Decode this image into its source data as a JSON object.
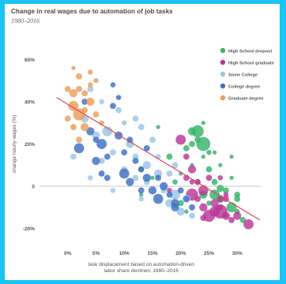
{
  "colors": {
    "frame": "#1bc4f2",
    "trendline": "#e0475a",
    "zero_line": "#bfbfbf"
  },
  "chart_data": {
    "type": "scatter",
    "title": "Change in real wages due to automation of job tasks",
    "subtitle": "1980–2016",
    "xlabel": "task displacement based on automation-driven labor share declines, 1980–2016",
    "ylabel": "change hourly wages (%)",
    "xlim": [
      -5,
      35
    ],
    "ylim": [
      -25,
      65
    ],
    "x_ticks": [
      0,
      5,
      10,
      15,
      20,
      25,
      30
    ],
    "x_tick_labels": [
      "0%",
      "5%",
      "10%",
      "15%",
      "20%",
      "25%",
      "30%"
    ],
    "y_ticks": [
      -20,
      0,
      20,
      40,
      60
    ],
    "y_tick_labels": [
      "-20%",
      "0",
      "20%",
      "40%",
      "60%"
    ],
    "grid": false,
    "legend_position": "top-right",
    "trendline": {
      "x": [
        -2,
        34
      ],
      "y": [
        42,
        -16
      ]
    },
    "series": [
      {
        "name": "High School dropout",
        "color": "#36b36a",
        "points": [
          [
            13,
            8,
            1.5
          ],
          [
            16,
            28,
            1
          ],
          [
            18,
            14,
            2
          ],
          [
            20,
            6,
            1
          ],
          [
            21,
            18,
            2
          ],
          [
            22,
            26,
            3
          ],
          [
            22,
            10,
            1
          ],
          [
            23,
            22,
            2
          ],
          [
            23,
            2,
            1.5
          ],
          [
            24,
            14,
            1
          ],
          [
            24,
            -4,
            3
          ],
          [
            25,
            8,
            2
          ],
          [
            25,
            -8,
            1.5
          ],
          [
            26,
            16,
            1
          ],
          [
            26,
            2,
            2
          ],
          [
            27,
            -6,
            3
          ],
          [
            27,
            10,
            1
          ],
          [
            28,
            -2,
            2
          ],
          [
            28,
            -14,
            1
          ],
          [
            29,
            -10,
            4
          ],
          [
            29,
            4,
            1
          ],
          [
            30,
            -4,
            2
          ],
          [
            30,
            -12,
            1.5
          ],
          [
            31,
            -16,
            2
          ],
          [
            23,
            26,
            5
          ],
          [
            26,
            -4,
            4
          ],
          [
            19,
            2,
            1.5
          ],
          [
            21,
            -12,
            1
          ],
          [
            15,
            4,
            1
          ],
          [
            24,
            20,
            6
          ],
          [
            27,
            -1,
            2.5
          ],
          [
            24,
            30,
            1
          ],
          [
            20,
            -8,
            2
          ],
          [
            30,
            -6,
            2
          ],
          [
            22,
            20,
            2
          ],
          [
            25,
            16,
            1.5
          ],
          [
            29,
            14,
            1
          ],
          [
            13,
            -4,
            1
          ]
        ]
      },
      {
        "name": "High School graduate",
        "color": "#b93799",
        "points": [
          [
            20,
            22,
            4
          ],
          [
            21,
            14,
            2
          ],
          [
            22,
            -4,
            5
          ],
          [
            22,
            8,
            3
          ],
          [
            23,
            2,
            2
          ],
          [
            24,
            -2,
            4
          ],
          [
            24,
            -10,
            3
          ],
          [
            25,
            4,
            2
          ],
          [
            25,
            -14,
            5
          ],
          [
            26,
            -8,
            3
          ],
          [
            26,
            -12,
            4
          ],
          [
            27,
            -10,
            2
          ],
          [
            27,
            4,
            1.5
          ],
          [
            28,
            -14,
            3
          ],
          [
            28,
            -6,
            2
          ],
          [
            29,
            -16,
            2
          ],
          [
            32,
            -18,
            4
          ],
          [
            30,
            -14,
            3
          ],
          [
            27,
            -12,
            6
          ],
          [
            21,
            4,
            2
          ],
          [
            23,
            -6,
            2
          ],
          [
            18,
            -2,
            1.5
          ],
          [
            24,
            -15,
            2
          ],
          [
            27,
            -6,
            2
          ],
          [
            22,
            2,
            1.5
          ],
          [
            28,
            -4,
            1.5
          ]
        ]
      },
      {
        "name": "Some College",
        "color": "#9cc4e8",
        "points": [
          [
            1,
            14,
            2
          ],
          [
            3,
            32,
            3
          ],
          [
            4,
            46,
            2
          ],
          [
            5,
            24,
            3
          ],
          [
            6,
            12,
            2
          ],
          [
            7,
            26,
            4
          ],
          [
            8,
            16,
            2
          ],
          [
            9,
            36,
            2
          ],
          [
            10,
            8,
            2
          ],
          [
            11,
            20,
            3
          ],
          [
            12,
            14,
            2
          ],
          [
            13,
            28,
            2
          ],
          [
            14,
            10,
            3
          ],
          [
            14,
            2,
            2
          ],
          [
            15,
            22,
            2
          ],
          [
            16,
            6,
            3
          ],
          [
            17,
            -2,
            2
          ],
          [
            18,
            -8,
            3
          ],
          [
            19,
            -4,
            4
          ],
          [
            20,
            -12,
            3
          ],
          [
            21,
            -6,
            3
          ],
          [
            22,
            -14,
            2
          ],
          [
            12,
            4,
            2
          ],
          [
            10,
            30,
            1.5
          ],
          [
            6,
            40,
            1.5
          ],
          [
            8,
            -2,
            1.5
          ],
          [
            16,
            14,
            1.5
          ],
          [
            18,
            6,
            2
          ],
          [
            4,
            4,
            1.5
          ],
          [
            13,
            -6,
            1.5
          ],
          [
            12,
            32,
            2
          ],
          [
            19,
            10,
            2
          ]
        ]
      },
      {
        "name": "College degree",
        "color": "#3e6fc1",
        "points": [
          [
            2,
            18,
            4
          ],
          [
            3,
            40,
            2
          ],
          [
            4,
            26,
            3
          ],
          [
            5,
            12,
            3
          ],
          [
            6,
            20,
            4
          ],
          [
            7,
            14,
            2
          ],
          [
            8,
            38,
            2
          ],
          [
            9,
            24,
            3
          ],
          [
            10,
            6,
            4
          ],
          [
            10,
            16,
            2
          ],
          [
            11,
            2,
            3
          ],
          [
            12,
            12,
            2
          ],
          [
            13,
            8,
            2
          ],
          [
            14,
            18,
            2
          ],
          [
            15,
            -2,
            3
          ],
          [
            16,
            -6,
            4
          ],
          [
            16,
            4,
            2
          ],
          [
            17,
            0,
            3
          ],
          [
            18,
            -4,
            2
          ],
          [
            19,
            -8,
            3
          ],
          [
            20,
            -2,
            2
          ],
          [
            21,
            -6,
            2
          ],
          [
            8,
            48,
            1.5
          ],
          [
            11,
            22,
            2
          ],
          [
            14,
            4,
            3
          ],
          [
            13,
            -2,
            2
          ],
          [
            19,
            -10,
            3
          ],
          [
            22,
            -10,
            2
          ],
          [
            9,
            42,
            1.5
          ],
          [
            6,
            6,
            2
          ],
          [
            5,
            22,
            2
          ],
          [
            7,
            4,
            2
          ]
        ]
      },
      {
        "name": "Graduate degree",
        "color": "#ed9c5a",
        "points": [
          [
            1,
            38,
            4
          ],
          [
            2,
            34,
            5
          ],
          [
            1,
            44,
            3
          ],
          [
            2,
            52,
            2
          ],
          [
            3,
            28,
            3
          ],
          [
            3,
            44,
            2
          ],
          [
            4,
            40,
            3
          ],
          [
            0,
            32,
            2
          ],
          [
            4,
            54,
            1.5
          ],
          [
            5,
            50,
            1.5
          ],
          [
            1,
            56,
            1
          ],
          [
            2,
            22,
            2
          ],
          [
            3,
            36,
            2
          ],
          [
            6,
            30,
            1.5
          ],
          [
            0,
            46,
            2
          ],
          [
            2,
            46,
            2
          ],
          [
            5,
            34,
            2
          ],
          [
            4,
            48,
            1.5
          ],
          [
            1,
            28,
            2
          ]
        ]
      }
    ]
  }
}
